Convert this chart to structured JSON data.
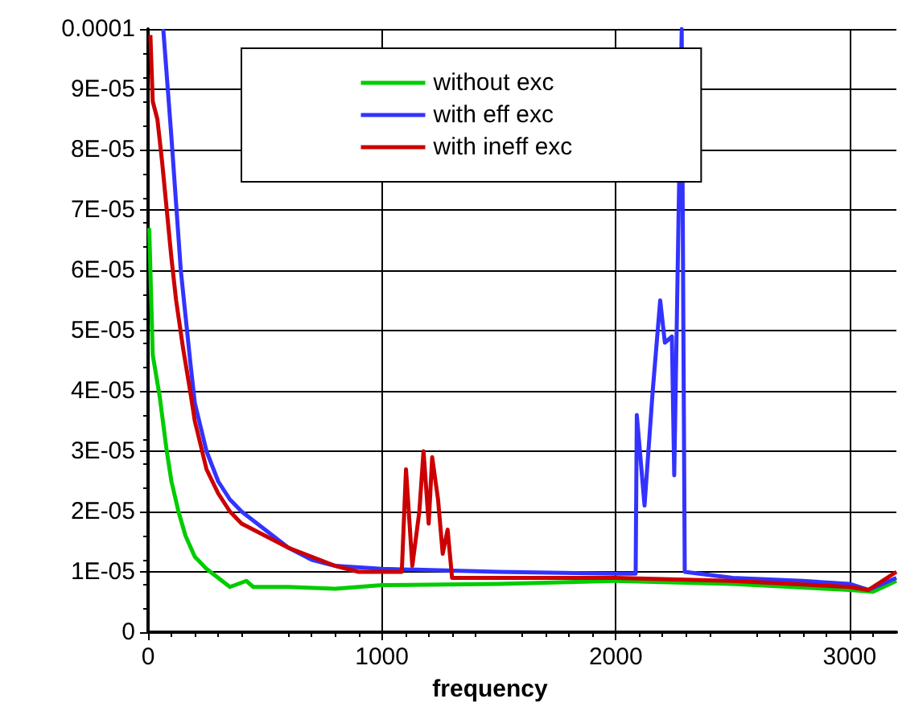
{
  "chart_data": {
    "type": "line",
    "xlabel": "frequency",
    "xlim": [
      0,
      3200
    ],
    "xticks": [
      0,
      1000,
      2000,
      3000
    ],
    "ylim": [
      0,
      0.0001
    ],
    "yticks": [
      0,
      {
        "value": 1e-05,
        "label": "1E-05"
      },
      {
        "value": 2e-05,
        "label": "2E-05"
      },
      {
        "value": 3e-05,
        "label": "3E-05"
      },
      {
        "value": 4e-05,
        "label": "4E-05"
      },
      {
        "value": 5e-05,
        "label": "5E-05"
      },
      {
        "value": 6e-05,
        "label": "6E-05"
      },
      {
        "value": 7e-05,
        "label": "7E-05"
      },
      {
        "value": 8e-05,
        "label": "8E-05"
      },
      {
        "value": 9e-05,
        "label": "9E-05"
      },
      0.0001
    ],
    "grid": true,
    "legend": "top",
    "marker": "none",
    "line_style": "solid",
    "series": [
      {
        "name": "without exc",
        "color": "#00cc00",
        "x": [
          5,
          20,
          50,
          80,
          100,
          130,
          160,
          200,
          250,
          300,
          350,
          420,
          450,
          600,
          800,
          1000,
          1500,
          2000,
          2500,
          3000,
          3100,
          3200
        ],
        "values": [
          6.7e-05,
          4.6e-05,
          3.9e-05,
          3e-05,
          2.5e-05,
          2e-05,
          1.6e-05,
          1.25e-05,
          1.05e-05,
          9e-06,
          7.5e-06,
          8.5e-06,
          7.5e-06,
          7.5e-06,
          7.2e-06,
          7.8e-06,
          8e-06,
          8.5e-06,
          8e-06,
          7e-06,
          6.7e-06,
          8.5e-06
        ]
      },
      {
        "name": "with eff exc",
        "color": "#3333ff",
        "x": [
          65,
          100,
          140,
          180,
          200,
          250,
          300,
          350,
          400,
          500,
          600,
          700,
          800,
          1000,
          1500,
          2000,
          2085,
          2090,
          2123,
          2158,
          2190,
          2210,
          2240,
          2250,
          2282,
          2295,
          2500,
          2800,
          3000,
          3080,
          3200
        ],
        "values": [
          0.0001,
          8.2e-05,
          6e-05,
          4.5e-05,
          3.8e-05,
          3e-05,
          2.5e-05,
          2.2e-05,
          2e-05,
          1.7e-05,
          1.4e-05,
          1.2e-05,
          1.1e-05,
          1.05e-05,
          1e-05,
          9.7e-06,
          9.7e-06,
          3.6e-05,
          2.1e-05,
          4e-05,
          5.5e-05,
          4.8e-05,
          4.9e-05,
          2.6e-05,
          0.0001,
          1e-05,
          9e-06,
          8.5e-06,
          8e-06,
          7e-06,
          9e-06
        ]
      },
      {
        "name": "with ineff exc",
        "color": "#cc0000",
        "x": [
          10,
          20,
          40,
          60,
          80,
          100,
          120,
          150,
          180,
          200,
          250,
          300,
          350,
          400,
          500,
          600,
          700,
          800,
          900,
          1000,
          1085,
          1103,
          1130,
          1160,
          1178,
          1200,
          1215,
          1240,
          1260,
          1281,
          1300,
          1500,
          2000,
          2500,
          3000,
          3080,
          3200
        ],
        "values": [
          9.9e-05,
          8.8e-05,
          8.5e-05,
          7.8e-05,
          7e-05,
          6.2e-05,
          5.5e-05,
          4.7e-05,
          4e-05,
          3.5e-05,
          2.7e-05,
          2.3e-05,
          2e-05,
          1.8e-05,
          1.6e-05,
          1.4e-05,
          1.25e-05,
          1.1e-05,
          1e-05,
          1e-05,
          1e-05,
          2.7e-05,
          1.1e-05,
          2e-05,
          3e-05,
          1.8e-05,
          2.9e-05,
          2.2e-05,
          1.3e-05,
          1.7e-05,
          9e-06,
          9e-06,
          9e-06,
          8.5e-06,
          7.5e-06,
          7e-06,
          1e-05
        ]
      }
    ]
  }
}
